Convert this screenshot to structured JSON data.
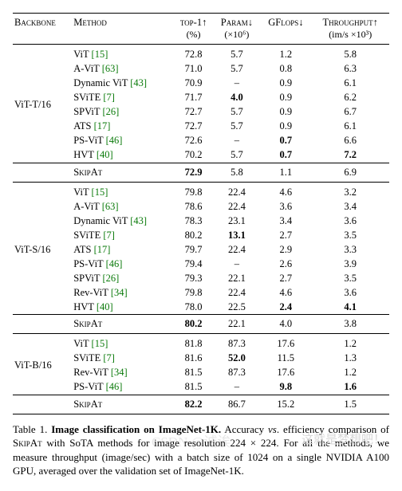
{
  "header": {
    "backbone": "Backbone",
    "method": "Method",
    "top1": "top-1↑",
    "top1_sub": "(%)",
    "param": "Param↓",
    "param_sub": "(×10⁶)",
    "gflops": "GFlops↓",
    "throughput": "Throughput↑",
    "throughput_sub": "(im/s ×10³)"
  },
  "groups": [
    {
      "backbone": "ViT-T/16",
      "rows": [
        {
          "method": "ViT",
          "cite": "[15]",
          "top1": "72.8",
          "param": "5.7",
          "gflops": "1.2",
          "thr": "5.8"
        },
        {
          "method": "A-ViT",
          "cite": "[63]",
          "top1": "71.0",
          "param": "5.7",
          "gflops": "0.8",
          "thr": "6.3"
        },
        {
          "method": "Dynamic ViT",
          "cite": "[43]",
          "top1": "70.9",
          "param": "–",
          "gflops": "0.9",
          "thr": "6.1"
        },
        {
          "method": "SViTE",
          "cite": "[7]",
          "top1": "71.7",
          "param": "4.0",
          "param_bold": true,
          "gflops": "0.9",
          "thr": "6.2"
        },
        {
          "method": "SPViT",
          "cite": "[26]",
          "top1": "72.7",
          "param": "5.7",
          "gflops": "0.9",
          "thr": "6.7"
        },
        {
          "method": "ATS",
          "cite": "[17]",
          "top1": "72.7",
          "param": "5.7",
          "gflops": "0.9",
          "thr": "6.1"
        },
        {
          "method": "PS-ViT",
          "cite": "[46]",
          "top1": "72.6",
          "param": "–",
          "gflops": "0.7",
          "gflops_bold": true,
          "thr": "6.6"
        },
        {
          "method": "HVT",
          "cite": "[40]",
          "top1": "70.2",
          "param": "5.7",
          "gflops": "0.7",
          "gflops_bold": true,
          "thr": "7.2",
          "thr_bold": true
        }
      ],
      "summary": {
        "method": "SkipAt",
        "top1": "72.9",
        "top1_bold": true,
        "param": "5.8",
        "gflops": "1.1",
        "thr": "6.9"
      }
    },
    {
      "backbone": "ViT-S/16",
      "rows": [
        {
          "method": "ViT",
          "cite": "[15]",
          "top1": "79.8",
          "param": "22.4",
          "gflops": "4.6",
          "thr": "3.2"
        },
        {
          "method": "A-ViT",
          "cite": "[63]",
          "top1": "78.6",
          "param": "22.4",
          "gflops": "3.6",
          "thr": "3.4"
        },
        {
          "method": "Dynamic ViT",
          "cite": "[43]",
          "top1": "78.3",
          "param": "23.1",
          "gflops": "3.4",
          "thr": "3.6"
        },
        {
          "method": "SViTE",
          "cite": "[7]",
          "top1": "80.2",
          "param": "13.1",
          "param_bold": true,
          "gflops": "2.7",
          "thr": "3.5"
        },
        {
          "method": "ATS",
          "cite": "[17]",
          "top1": "79.7",
          "param": "22.4",
          "gflops": "2.9",
          "thr": "3.3"
        },
        {
          "method": "PS-ViT",
          "cite": "[46]",
          "top1": "79.4",
          "param": "–",
          "gflops": "2.6",
          "thr": "3.9"
        },
        {
          "method": "SPViT",
          "cite": "[26]",
          "top1": "79.3",
          "param": "22.1",
          "gflops": "2.7",
          "thr": "3.5"
        },
        {
          "method": "Rev-ViT",
          "cite": "[34]",
          "top1": "79.8",
          "param": "22.4",
          "gflops": "4.6",
          "thr": "3.6"
        },
        {
          "method": "HVT",
          "cite": "[40]",
          "top1": "78.0",
          "param": "22.5",
          "gflops": "2.4",
          "gflops_bold": true,
          "thr": "4.1",
          "thr_bold": true
        }
      ],
      "summary": {
        "method": "SkipAt",
        "top1": "80.2",
        "top1_bold": true,
        "param": "22.1",
        "gflops": "4.0",
        "thr": "3.8"
      }
    },
    {
      "backbone": "ViT-B/16",
      "rows": [
        {
          "method": "ViT",
          "cite": "[15]",
          "top1": "81.8",
          "param": "87.3",
          "gflops": "17.6",
          "thr": "1.2"
        },
        {
          "method": "SViTE",
          "cite": "[7]",
          "top1": "81.6",
          "param": "52.0",
          "param_bold": true,
          "gflops": "11.5",
          "thr": "1.3"
        },
        {
          "method": "Rev-ViT",
          "cite": "[34]",
          "top1": "81.5",
          "param": "87.3",
          "gflops": "17.6",
          "thr": "1.2"
        },
        {
          "method": "PS-ViT",
          "cite": "[46]",
          "top1": "81.5",
          "param": "–",
          "gflops": "9.8",
          "gflops_bold": true,
          "thr": "1.6",
          "thr_bold": true
        }
      ],
      "summary": {
        "method": "SkipAt",
        "top1": "82.2",
        "top1_bold": true,
        "param": "86.7",
        "gflops": "15.2",
        "thr": "1.5"
      }
    }
  ],
  "caption": {
    "label": "Table 1.",
    "title": " Image classification on ImageNet-1K.",
    "body": " Accuracy vs. efficiency comparison of SKIPAT with SoTA methods for image resolution 224 × 224. For all the methods, we measure throughput (image/sec) with a batch size of 1024 on a single NVIDIA A100 GPU, averaged over the validation set of ImageNet-1K."
  },
  "watermark": "CSDN @诚诶",
  "watermark2": "这就是梦想吧！"
}
